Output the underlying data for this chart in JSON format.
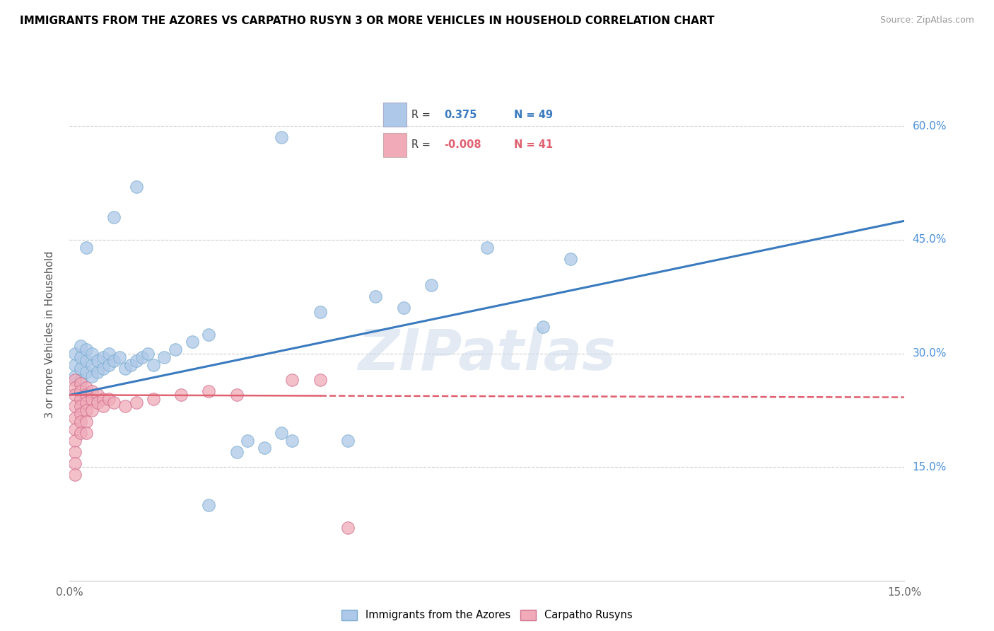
{
  "title": "IMMIGRANTS FROM THE AZORES VS CARPATHO RUSYN 3 OR MORE VEHICLES IN HOUSEHOLD CORRELATION CHART",
  "source": "Source: ZipAtlas.com",
  "ylabel": "3 or more Vehicles in Household",
  "xlim": [
    0.0,
    0.15
  ],
  "ylim": [
    0.0,
    0.65
  ],
  "xtick_vals": [
    0.0,
    0.03,
    0.06,
    0.09,
    0.12,
    0.15
  ],
  "xtick_labels": [
    "0.0%",
    "",
    "",
    "",
    "",
    "15.0%"
  ],
  "ytick_vals": [
    0.0,
    0.15,
    0.3,
    0.45,
    0.6
  ],
  "ytick_labels": [
    "",
    "15.0%",
    "30.0%",
    "45.0%",
    "60.0%"
  ],
  "blue_color": "#adc8e8",
  "pink_color": "#f0aab8",
  "blue_line_color": "#3a7abf",
  "pink_line_color": "#e06070",
  "tick_label_color": "#4a90d9",
  "watermark": "ZIPatlas",
  "blue_scatter": [
    [
      0.001,
      0.27
    ],
    [
      0.001,
      0.285
    ],
    [
      0.001,
      0.3
    ],
    [
      0.002,
      0.265
    ],
    [
      0.002,
      0.28
    ],
    [
      0.002,
      0.295
    ],
    [
      0.002,
      0.31
    ],
    [
      0.003,
      0.275
    ],
    [
      0.003,
      0.29
    ],
    [
      0.003,
      0.305
    ],
    [
      0.004,
      0.27
    ],
    [
      0.004,
      0.285
    ],
    [
      0.004,
      0.3
    ],
    [
      0.005,
      0.275
    ],
    [
      0.005,
      0.29
    ],
    [
      0.006,
      0.28
    ],
    [
      0.006,
      0.295
    ],
    [
      0.007,
      0.285
    ],
    [
      0.007,
      0.3
    ],
    [
      0.008,
      0.29
    ],
    [
      0.009,
      0.295
    ],
    [
      0.01,
      0.28
    ],
    [
      0.011,
      0.285
    ],
    [
      0.012,
      0.29
    ],
    [
      0.013,
      0.295
    ],
    [
      0.014,
      0.3
    ],
    [
      0.015,
      0.285
    ],
    [
      0.017,
      0.295
    ],
    [
      0.019,
      0.305
    ],
    [
      0.022,
      0.315
    ],
    [
      0.025,
      0.325
    ],
    [
      0.03,
      0.17
    ],
    [
      0.032,
      0.185
    ],
    [
      0.035,
      0.175
    ],
    [
      0.038,
      0.195
    ],
    [
      0.04,
      0.185
    ],
    [
      0.045,
      0.355
    ],
    [
      0.05,
      0.185
    ],
    [
      0.055,
      0.375
    ],
    [
      0.06,
      0.36
    ],
    [
      0.065,
      0.39
    ],
    [
      0.075,
      0.44
    ],
    [
      0.085,
      0.335
    ],
    [
      0.09,
      0.425
    ],
    [
      0.038,
      0.585
    ],
    [
      0.025,
      0.1
    ],
    [
      0.003,
      0.44
    ],
    [
      0.008,
      0.48
    ],
    [
      0.012,
      0.52
    ]
  ],
  "pink_scatter": [
    [
      0.001,
      0.265
    ],
    [
      0.001,
      0.255
    ],
    [
      0.001,
      0.245
    ],
    [
      0.001,
      0.23
    ],
    [
      0.001,
      0.215
    ],
    [
      0.001,
      0.2
    ],
    [
      0.001,
      0.185
    ],
    [
      0.001,
      0.17
    ],
    [
      0.001,
      0.155
    ],
    [
      0.001,
      0.14
    ],
    [
      0.002,
      0.26
    ],
    [
      0.002,
      0.25
    ],
    [
      0.002,
      0.24
    ],
    [
      0.002,
      0.23
    ],
    [
      0.002,
      0.22
    ],
    [
      0.002,
      0.21
    ],
    [
      0.002,
      0.195
    ],
    [
      0.003,
      0.255
    ],
    [
      0.003,
      0.245
    ],
    [
      0.003,
      0.235
    ],
    [
      0.003,
      0.225
    ],
    [
      0.003,
      0.21
    ],
    [
      0.003,
      0.195
    ],
    [
      0.004,
      0.25
    ],
    [
      0.004,
      0.24
    ],
    [
      0.004,
      0.225
    ],
    [
      0.005,
      0.245
    ],
    [
      0.005,
      0.235
    ],
    [
      0.006,
      0.24
    ],
    [
      0.006,
      0.23
    ],
    [
      0.007,
      0.24
    ],
    [
      0.008,
      0.235
    ],
    [
      0.01,
      0.23
    ],
    [
      0.012,
      0.235
    ],
    [
      0.015,
      0.24
    ],
    [
      0.02,
      0.245
    ],
    [
      0.025,
      0.25
    ],
    [
      0.03,
      0.245
    ],
    [
      0.04,
      0.265
    ],
    [
      0.045,
      0.265
    ],
    [
      0.05,
      0.07
    ]
  ],
  "blue_trendline": [
    [
      0.0,
      0.245
    ],
    [
      0.15,
      0.475
    ]
  ],
  "pink_solid_trendline": [
    [
      0.0,
      0.245
    ],
    [
      0.045,
      0.244
    ]
  ],
  "pink_dashed_trendline": [
    [
      0.045,
      0.244
    ],
    [
      0.15,
      0.242
    ]
  ]
}
